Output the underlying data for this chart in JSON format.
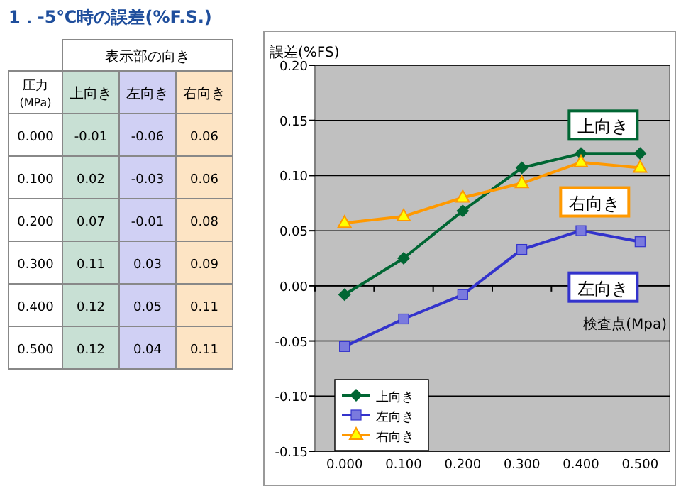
{
  "chart_data": [
    {
      "type": "heatmap",
      "title": "1．-5℃時の誤差(%F.S.)",
      "xlabel": "表示部の向き",
      "ylabel": "圧力(MPa)",
      "categories": [
        "上向き",
        "左向き",
        "右向き"
      ],
      "y_categories": [
        "0.000",
        "0.100",
        "0.200",
        "0.300",
        "0.400",
        "0.500"
      ],
      "colors": [
        "#c8e0d4",
        "#d0d0f4",
        "#fde4c4"
      ],
      "cells": [
        [
          -0.01,
          -0.06,
          0.06
        ],
        [
          0.02,
          -0.03,
          0.06
        ],
        [
          0.07,
          -0.01,
          0.08
        ],
        [
          0.11,
          0.03,
          0.09
        ],
        [
          0.12,
          0.05,
          0.11
        ],
        [
          0.12,
          0.04,
          0.11
        ]
      ],
      "data_labels": true
    },
    {
      "type": "line",
      "ylabel": "誤差(%FS)",
      "xlabel": "検査点(Mpa)",
      "categories": [
        "0.000",
        "0.100",
        "0.200",
        "0.300",
        "0.400",
        "0.500"
      ],
      "series": [
        {
          "name": "上向き",
          "color": "#006633",
          "marker": "diamond",
          "values": [
            -0.008,
            0.025,
            0.068,
            0.107,
            0.12,
            0.12
          ]
        },
        {
          "name": "左向き",
          "color": "#3333cc",
          "marker": "square",
          "values": [
            -0.055,
            -0.03,
            -0.008,
            0.033,
            0.05,
            0.04
          ]
        },
        {
          "name": "右向き",
          "color": "#ff9900",
          "marker": "triangle",
          "values": [
            0.057,
            0.063,
            0.08,
            0.093,
            0.112,
            0.107
          ]
        }
      ],
      "ylim": [
        -0.15,
        0.2
      ],
      "yticks": [
        {
          "value": -0.15,
          "label": "-0.15"
        },
        {
          "value": -0.1,
          "label": "-0.10"
        },
        {
          "value": -0.05,
          "label": "-0.05"
        },
        {
          "value": 0,
          "label": "0.00"
        },
        {
          "value": 0.05,
          "label": "0.05"
        },
        {
          "value": 0.1,
          "label": "0.10"
        },
        {
          "value": 0.15,
          "label": "0.15"
        },
        {
          "value": 0.2,
          "label": "0.20"
        }
      ],
      "grid": "y",
      "legend": "bottom left"
    }
  ]
}
